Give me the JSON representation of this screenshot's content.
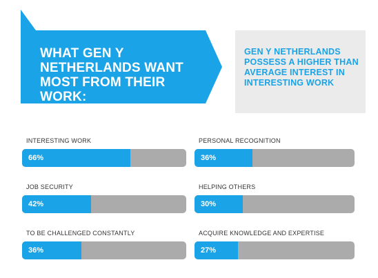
{
  "header": {
    "title": "WHAT GEN Y NETHERLANDS WANT MOST FROM THEIR WORK:",
    "subtitle": "GEN Y NETHERLANDS POSSESS A HIGHER THAN AVERAGE INTEREST IN INTERESTING WORK"
  },
  "colors": {
    "accent": "#1aa3e6",
    "bar_track": "#ababab",
    "callout_bg": "#ebebeb",
    "label_text": "#333333"
  },
  "chart_data": {
    "type": "bar",
    "orientation": "horizontal",
    "categories": [
      "INTERESTING WORK",
      "JOB SECURITY",
      "TO BE CHALLENGED CONSTANTLY",
      "PERSONAL RECOGNITION",
      "HELPING OTHERS",
      "ACQUIRE KNOWLEDGE AND EXPERTISE"
    ],
    "values": [
      66,
      42,
      36,
      36,
      30,
      27
    ],
    "value_labels": [
      "66%",
      "42%",
      "36%",
      "36%",
      "30%",
      "27%"
    ],
    "xlim": [
      0,
      100
    ],
    "unit": "%"
  }
}
